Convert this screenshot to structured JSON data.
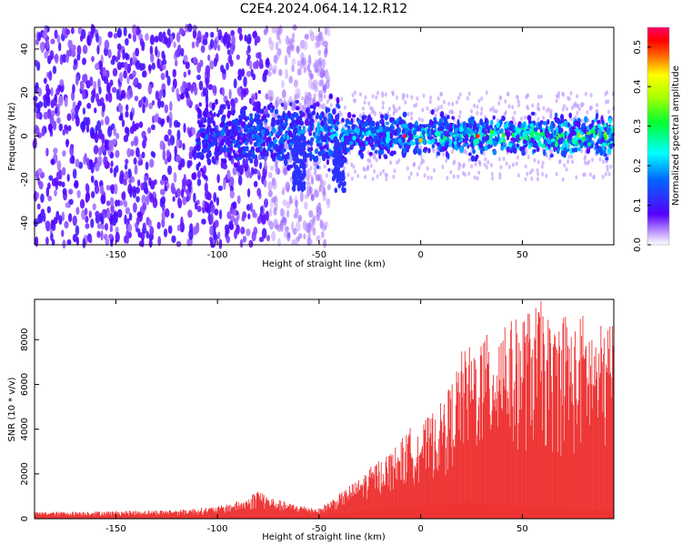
{
  "title": "C2E4.2024.064.14.12.R12",
  "chart_data": [
    {
      "type": "heatmap",
      "xlabel": "Height of straight line (km)",
      "ylabel": "Frequency (Hz)",
      "xlim": [
        -190,
        95
      ],
      "ylim": [
        -50,
        50
      ],
      "xticks": [
        -150,
        -100,
        -50,
        0,
        50
      ],
      "yticks": [
        -40,
        -20,
        0,
        20,
        40
      ],
      "grid": false,
      "colorbar": {
        "label": "Normalized spectral amplitude",
        "range": [
          0,
          0.55
        ],
        "ticks": [
          "0.0",
          "0.1",
          "0.2",
          "0.3",
          "0.4",
          "0.5"
        ],
        "colors": [
          "#ffffff",
          "#5500ff",
          "#00ffff",
          "#00ff00",
          "#ffff00",
          "#ff0000",
          "#ff0066"
        ]
      },
      "features": {
        "broad_region_x": [
          -190,
          -50
        ],
        "narrow_band_x": [
          -110,
          95
        ],
        "narrow_band_center_hz": 0,
        "narrow_band_halfwidth_hz": 8,
        "peak_amplitude": 0.55
      }
    },
    {
      "type": "area",
      "xlabel": "Height of straight line (km)",
      "ylabel": "SNR (10 * v/v)",
      "xlim": [
        -190,
        95
      ],
      "ylim": [
        0,
        9800
      ],
      "xticks": [
        -150,
        -100,
        -50,
        0,
        50
      ],
      "yticks": [
        0,
        2000,
        4000,
        6000,
        8000
      ],
      "grid": false,
      "color": "#ee3333",
      "envelope": {
        "x": [
          -190,
          -150,
          -120,
          -100,
          -85,
          -80,
          -75,
          -65,
          -55,
          -50,
          -45,
          -40,
          -35,
          -30,
          -25,
          -20,
          -15,
          -10,
          -5,
          0,
          5,
          10,
          15,
          20,
          25,
          30,
          35,
          40,
          45,
          50,
          55,
          60,
          65,
          70,
          75,
          80,
          85,
          90,
          95
        ],
        "upper": [
          300,
          350,
          400,
          550,
          900,
          1400,
          1000,
          700,
          550,
          450,
          800,
          1100,
          1500,
          1800,
          2300,
          2700,
          3000,
          3500,
          4100,
          4200,
          4700,
          5200,
          6100,
          7500,
          7800,
          8300,
          8200,
          9600,
          8800,
          9300,
          9400,
          9800,
          8400,
          9700,
          8500,
          9300,
          8600,
          8700,
          9200
        ],
        "lower": [
          50,
          50,
          60,
          80,
          100,
          120,
          110,
          100,
          90,
          80,
          150,
          200,
          300,
          350,
          400,
          450,
          500,
          500,
          550,
          600,
          600,
          650,
          700,
          700,
          700,
          700,
          650,
          600,
          600,
          550,
          550,
          500,
          500,
          450,
          450,
          400,
          400,
          400,
          400
        ]
      }
    }
  ]
}
